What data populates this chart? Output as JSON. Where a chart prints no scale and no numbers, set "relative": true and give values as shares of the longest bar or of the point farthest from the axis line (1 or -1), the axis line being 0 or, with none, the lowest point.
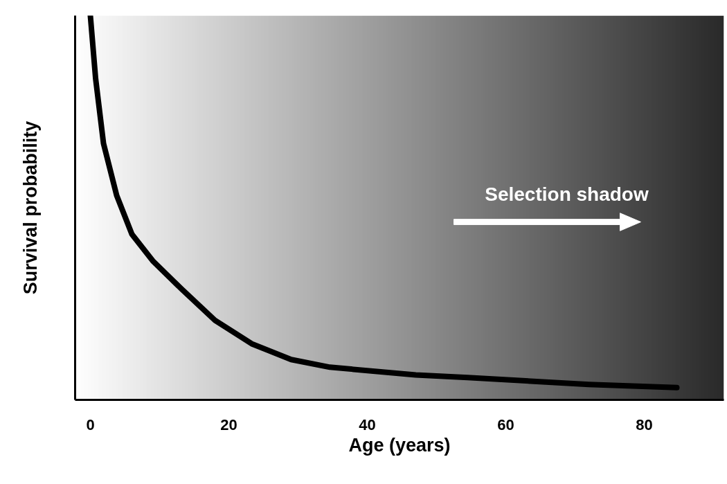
{
  "chart_data": {
    "type": "line",
    "relative": true,
    "xlabel": "Age (years)",
    "ylabel": "Survival probability",
    "xlim": [
      -2.2,
      91.5
    ],
    "xticks": [
      0,
      20,
      40,
      60,
      80
    ],
    "x": [
      0,
      0.76,
      1.9,
      3.8,
      6,
      9,
      13.2,
      18,
      23.3,
      29,
      34.6,
      47,
      54.5,
      72,
      84.7
    ],
    "series": [
      {
        "color": "#000000",
        "values": [
          1.0,
          0.836,
          0.667,
          0.532,
          0.431,
          0.362,
          0.288,
          0.207,
          0.146,
          0.105,
          0.085,
          0.065,
          0.058,
          0.04,
          0.032
        ]
      }
    ],
    "bands": [
      {
        "axis": "x",
        "from": -2.2,
        "to": 91.5,
        "color": "#2a2a2a"
      }
    ],
    "annotations": [
      "Selection shadow"
    ],
    "marker": "none",
    "line_style": "solid"
  }
}
